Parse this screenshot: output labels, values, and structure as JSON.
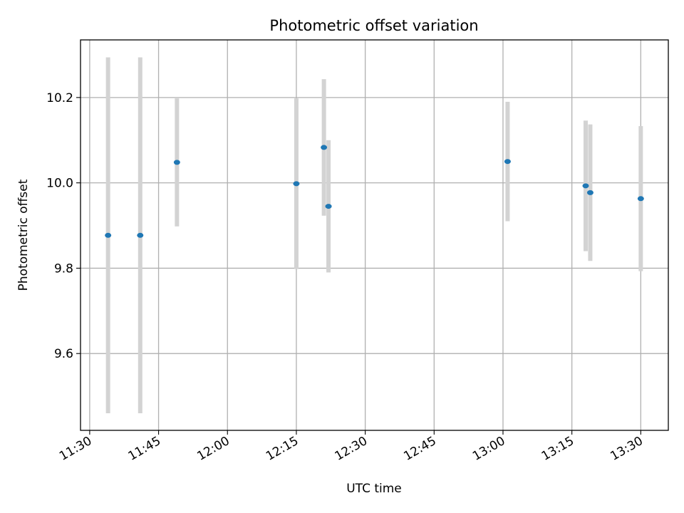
{
  "chart_data": {
    "type": "scatter",
    "title": "Photometric offset variation",
    "xlabel": "UTC time",
    "ylabel": "Photometric offset",
    "x_ticks": [
      "11:30",
      "11:45",
      "12:00",
      "12:15",
      "12:30",
      "12:45",
      "13:00",
      "13:15",
      "13:30"
    ],
    "y_ticks": [
      "9.6",
      "9.8",
      "10.0",
      "10.2"
    ],
    "xlim": [
      "11:28",
      "13:36"
    ],
    "ylim": [
      9.42,
      10.335
    ],
    "grid": true,
    "colors": {
      "marker": "#1f77b4",
      "errorbar": "#d3d3d3",
      "grid": "#b0b0b0"
    },
    "points": [
      {
        "x": "11:34",
        "y": 9.877,
        "yerr": 0.417
      },
      {
        "x": "11:41",
        "y": 9.877,
        "yerr": 0.417
      },
      {
        "x": "11:49",
        "y": 10.048,
        "yerr": 0.15
      },
      {
        "x": "12:15",
        "y": 9.998,
        "yerr": 0.2
      },
      {
        "x": "12:21",
        "y": 10.083,
        "yerr": 0.16
      },
      {
        "x": "12:22",
        "y": 9.945,
        "yerr": 0.155
      },
      {
        "x": "13:01",
        "y": 10.05,
        "yerr": 0.14
      },
      {
        "x": "13:18",
        "y": 9.993,
        "yerr": 0.153
      },
      {
        "x": "13:19",
        "y": 9.977,
        "yerr": 0.16
      },
      {
        "x": "13:30",
        "y": 9.963,
        "yerr": 0.17
      }
    ]
  }
}
